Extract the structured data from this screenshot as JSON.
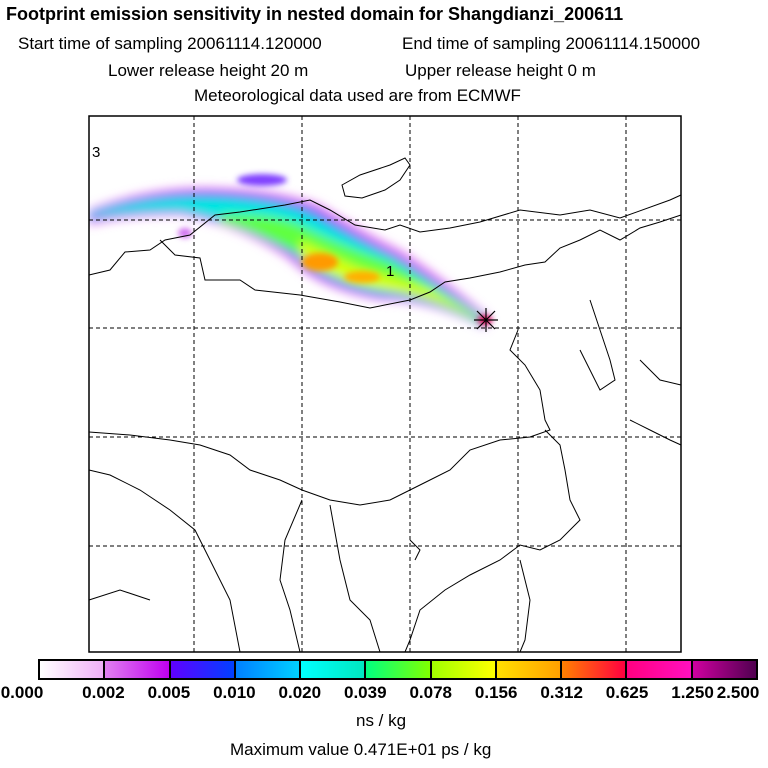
{
  "title": "Footprint emission sensitivity in nested domain for Shangdianzi_200611",
  "line2": {
    "start_label": "Start time of sampling 20061114.120000",
    "end_label": "End time of sampling 20061114.150000"
  },
  "line3": {
    "lower_label": "Lower release height   20 m",
    "upper_label": "Upper release height    0 m"
  },
  "line4": "Meteorological data used are from ECMWF",
  "map": {
    "labels": [
      "3",
      "1"
    ]
  },
  "colorbar": {
    "ticks": [
      "0.000",
      "0.002",
      "0.005",
      "0.010",
      "0.020",
      "0.039",
      "0.078",
      "0.156",
      "0.312",
      "0.625",
      "1.250",
      "2.500"
    ],
    "colors": [
      [
        "#ffffff",
        "#f0b0f8"
      ],
      [
        "#e080f0",
        "#c000f0"
      ],
      [
        "#6000ff",
        "#0040ff"
      ],
      [
        "#0080ff",
        "#00d0ff"
      ],
      [
        "#00ffff",
        "#00e8c0"
      ],
      [
        "#00ff80",
        "#80ff00"
      ],
      [
        "#a0ff00",
        "#ffff00"
      ],
      [
        "#ffe000",
        "#ffa000"
      ],
      [
        "#ff8000",
        "#ff0040"
      ],
      [
        "#ff0080",
        "#ff10c0"
      ],
      [
        "#d000a0",
        "#500050"
      ]
    ],
    "unit": "ns / kg"
  },
  "max_value": "Maximum value  0.471E+01 ps / kg"
}
